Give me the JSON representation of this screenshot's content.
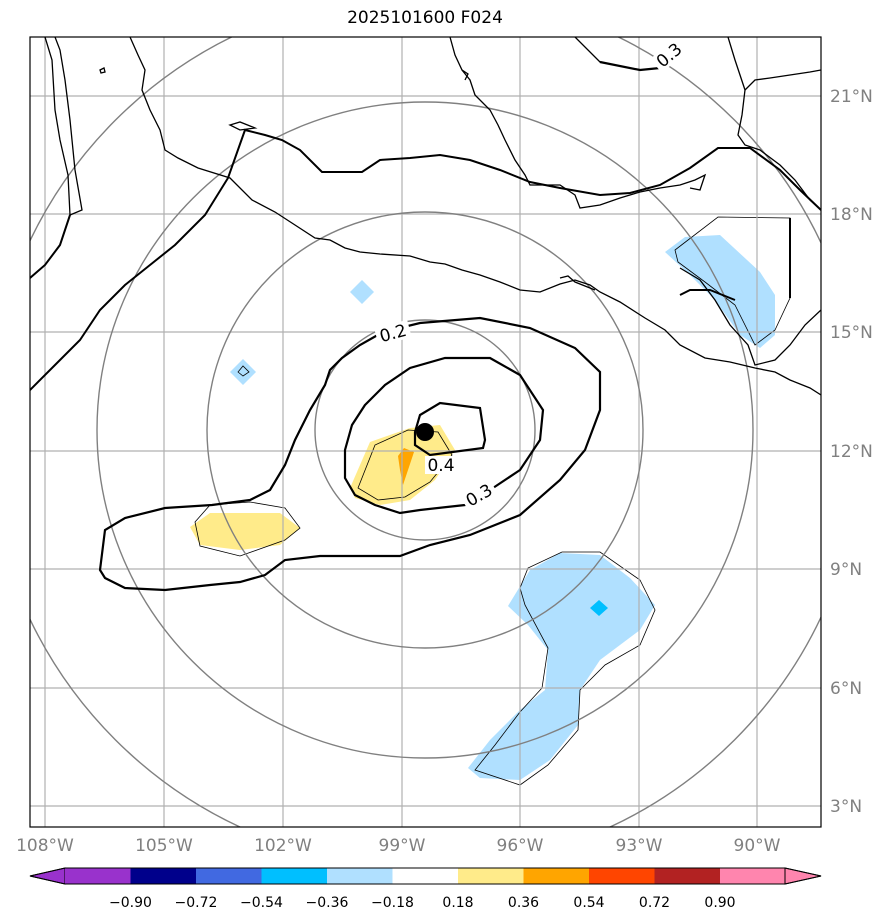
{
  "title": "2025101600 F024",
  "map": {
    "lon_labels": [
      "108°W",
      "105°W",
      "102°W",
      "99°W",
      "96°W",
      "93°W",
      "90°W"
    ],
    "lat_labels": [
      "21°N",
      "18°N",
      "15°N",
      "12°N",
      "9°N",
      "6°N",
      "3°N"
    ],
    "contour_labels": [
      "0.2",
      "0.3",
      "0.4",
      "0.3"
    ],
    "storm_center": {
      "lon": -98.4,
      "lat": 12.5
    }
  },
  "colorbar": {
    "labels": [
      "−0.90",
      "−0.72",
      "−0.54",
      "−0.36",
      "−0.18",
      "0.18",
      "0.36",
      "0.54",
      "0.72",
      "0.90"
    ],
    "colors": [
      "#9932cc",
      "#00008b",
      "#4169e1",
      "#00bfff",
      "#b0e0ff",
      "#ffffff",
      "#ffeb8a",
      "#ffa500",
      "#ff4500",
      "#b22222",
      "#ff85ae"
    ]
  }
}
